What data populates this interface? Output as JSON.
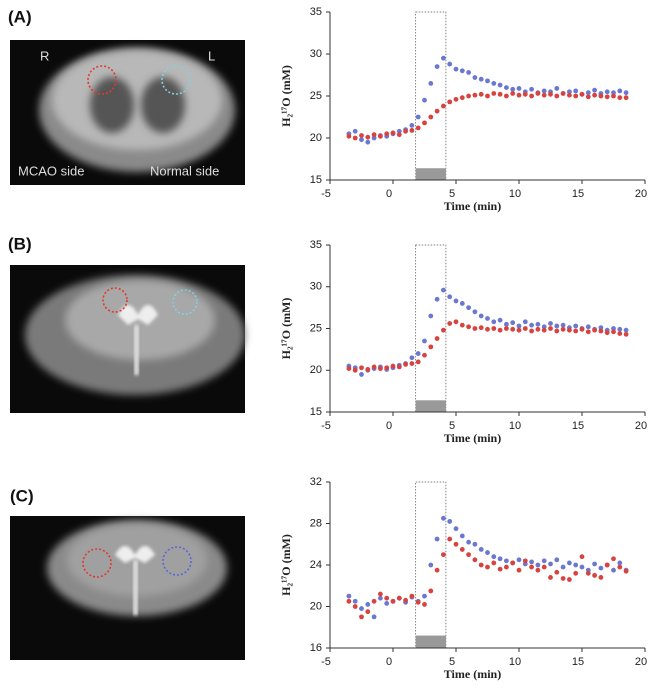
{
  "chart_data": [
    {
      "type": "scatter",
      "panel_label": "(A)",
      "image_labels": [
        "R",
        "L",
        "MCAO side",
        "Normal side"
      ],
      "x_label": "Time (min)",
      "y_label": "H₂¹⁷O (mM)",
      "xlim": [
        -5,
        20
      ],
      "xticks": [
        -5,
        0,
        5,
        10,
        15,
        20
      ],
      "ylim": [
        15,
        35
      ],
      "yticks": [
        15,
        20,
        25,
        30,
        35
      ],
      "infusion_span": [
        1.8,
        4.2
      ],
      "infusion_bar_top": 16.4,
      "x": [
        -3.5,
        -3,
        -2.5,
        -2,
        -1.5,
        -1,
        -0.5,
        0,
        0.5,
        1,
        1.5,
        2,
        2.5,
        3,
        3.5,
        4,
        4.5,
        5,
        5.5,
        6,
        6.5,
        7,
        7.5,
        8,
        8.5,
        9,
        9.5,
        10,
        10.5,
        11,
        11.5,
        12,
        12.5,
        13,
        13.5,
        14,
        14.5,
        15,
        15.5,
        16,
        16.5,
        17,
        17.5,
        18,
        18.5
      ],
      "series": [
        {
          "color": "#6a78d0",
          "values": [
            20.5,
            20.8,
            19.8,
            19.5,
            20.0,
            20.3,
            20.2,
            20.5,
            20.8,
            21.0,
            21.5,
            22.5,
            24.5,
            26.5,
            28.5,
            29.5,
            28.8,
            28.2,
            28.0,
            27.8,
            27.2,
            27.0,
            26.8,
            26.5,
            26.3,
            26.0,
            25.8,
            25.9,
            25.5,
            25.8,
            25.4,
            25.6,
            25.5,
            25.9,
            25.3,
            25.5,
            25.6,
            25.2,
            25.4,
            25.7,
            25.3,
            25.5,
            25.4,
            25.6,
            25.4
          ]
        },
        {
          "color": "#d8433f",
          "values": [
            20.2,
            20.0,
            20.3,
            20.1,
            20.4,
            20.2,
            20.5,
            20.6,
            20.4,
            20.8,
            20.9,
            21.2,
            21.8,
            22.5,
            23.2,
            23.8,
            24.3,
            24.6,
            24.8,
            25.0,
            25.1,
            25.2,
            25.0,
            25.3,
            25.2,
            25.0,
            25.3,
            25.1,
            25.2,
            25.0,
            25.3,
            25.1,
            25.2,
            25.0,
            25.3,
            25.1,
            25.0,
            25.2,
            24.9,
            25.1,
            25.0,
            24.9,
            25.0,
            24.8,
            24.8
          ]
        }
      ]
    },
    {
      "type": "scatter",
      "panel_label": "(B)",
      "x_label": "Time (min)",
      "y_label": "H₂¹⁷O (mM)",
      "xlim": [
        -5,
        20
      ],
      "xticks": [
        -5,
        0,
        5,
        10,
        15,
        20
      ],
      "ylim": [
        15,
        35
      ],
      "yticks": [
        15,
        20,
        25,
        30,
        35
      ],
      "infusion_span": [
        1.8,
        4.2
      ],
      "infusion_bar_top": 16.4,
      "x": [
        -3.5,
        -3,
        -2.5,
        -2,
        -1.5,
        -1,
        -0.5,
        0,
        0.5,
        1,
        1.5,
        2,
        2.5,
        3,
        3.5,
        4,
        4.5,
        5,
        5.5,
        6,
        6.5,
        7,
        7.5,
        8,
        8.5,
        9,
        9.5,
        10,
        10.5,
        11,
        11.5,
        12,
        12.5,
        13,
        13.5,
        14,
        14.5,
        15,
        15.5,
        16,
        16.5,
        17,
        17.5,
        18,
        18.5
      ],
      "series": [
        {
          "color": "#6a78d0",
          "values": [
            20.5,
            20.3,
            19.5,
            20.0,
            20.2,
            20.4,
            20.1,
            20.3,
            20.6,
            20.8,
            21.5,
            22.0,
            23.5,
            26.5,
            28.5,
            29.6,
            28.8,
            28.3,
            28.0,
            27.5,
            27.0,
            26.5,
            26.2,
            25.8,
            26.0,
            25.5,
            25.7,
            25.3,
            25.8,
            25.4,
            25.5,
            25.2,
            25.6,
            25.3,
            25.4,
            25.1,
            25.3,
            25.0,
            25.2,
            24.9,
            25.1,
            24.8,
            25.0,
            24.9,
            24.8
          ]
        },
        {
          "color": "#d8433f",
          "values": [
            20.2,
            20.0,
            20.3,
            20.1,
            20.4,
            20.2,
            20.3,
            20.5,
            20.4,
            20.7,
            20.8,
            21.0,
            21.8,
            22.8,
            23.8,
            24.8,
            25.6,
            25.8,
            25.4,
            25.2,
            25.0,
            25.1,
            24.9,
            25.0,
            24.8,
            25.0,
            24.9,
            24.8,
            25.0,
            24.7,
            24.9,
            24.8,
            25.0,
            24.7,
            24.9,
            24.8,
            24.7,
            24.9,
            24.6,
            24.8,
            24.7,
            24.5,
            24.6,
            24.4,
            24.3
          ]
        }
      ]
    },
    {
      "type": "scatter",
      "panel_label": "(C)",
      "x_label": "Time (min)",
      "y_label": "H₂¹⁷O (mM)",
      "xlim": [
        -5,
        20
      ],
      "xticks": [
        -5,
        0,
        5,
        10,
        15,
        20
      ],
      "ylim": [
        16,
        32
      ],
      "yticks": [
        16,
        20,
        24,
        28,
        32
      ],
      "infusion_span": [
        1.8,
        4.2
      ],
      "infusion_bar_top": 17.2,
      "x": [
        -3.5,
        -3,
        -2.5,
        -2,
        -1.5,
        -1,
        -0.5,
        0,
        0.5,
        1,
        1.5,
        2,
        2.5,
        3,
        3.5,
        4,
        4.5,
        5,
        5.5,
        6,
        6.5,
        7,
        7.5,
        8,
        8.5,
        9,
        9.5,
        10,
        10.5,
        11,
        11.5,
        12,
        12.5,
        13,
        13.5,
        14,
        14.5,
        15,
        15.5,
        16,
        16.5,
        17,
        17.5,
        18,
        18.5
      ],
      "series": [
        {
          "color": "#6a78d0",
          "values": [
            21.0,
            20.5,
            19.8,
            20.2,
            19.0,
            20.8,
            20.3,
            20.5,
            20.8,
            20.4,
            20.9,
            20.5,
            21.0,
            24.0,
            26.5,
            28.5,
            28.2,
            27.5,
            26.8,
            26.2,
            26.0,
            25.5,
            25.2,
            24.8,
            24.6,
            24.4,
            24.2,
            24.5,
            24.1,
            24.3,
            24.0,
            24.4,
            24.1,
            24.5,
            23.8,
            24.2,
            24.0,
            23.8,
            23.5,
            24.1,
            23.7,
            24.0,
            23.5,
            24.2,
            23.5
          ]
        },
        {
          "color": "#d8433f",
          "values": [
            20.5,
            20.0,
            19.0,
            19.5,
            20.5,
            21.2,
            20.8,
            20.5,
            20.8,
            20.6,
            21.0,
            20.4,
            20.2,
            21.5,
            23.5,
            25.0,
            26.5,
            26.0,
            25.5,
            25.0,
            24.5,
            24.0,
            23.8,
            24.2,
            23.6,
            23.8,
            24.2,
            23.5,
            24.4,
            23.8,
            23.5,
            23.8,
            22.8,
            23.3,
            22.7,
            22.6,
            23.2,
            24.8,
            23.2,
            23.0,
            22.8,
            24.0,
            24.6,
            23.8,
            23.4
          ]
        }
      ]
    }
  ]
}
